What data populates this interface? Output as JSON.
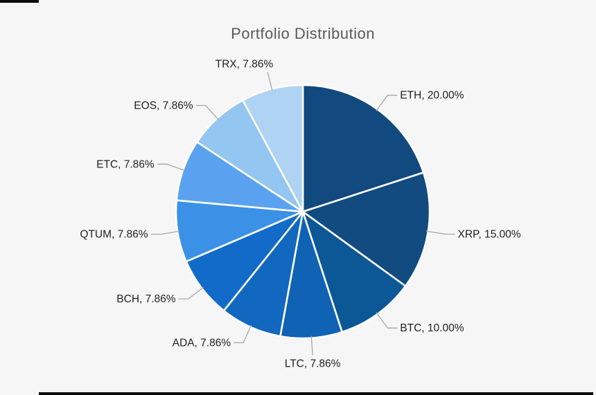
{
  "page": {
    "background": "#F6F6F6"
  },
  "header": {
    "title": "Portfolio Distribution",
    "title_color": "#595959"
  },
  "chart_data": {
    "type": "pie",
    "title": "Portfolio Distribution",
    "legend_position": "none",
    "start_angle_deg": 0,
    "direction": "clockwise",
    "total_percent": 100,
    "label_format": "{label}, {value}%",
    "label_style": {
      "color": "#1F1F1F",
      "leader_line_color": "#A6A6A6"
    },
    "slices": [
      {
        "label": "ETH",
        "value": 20.0,
        "display": "ETH, 20.00%",
        "color": "#12497E"
      },
      {
        "label": "XRP",
        "value": 15.0,
        "display": "XRP, 15.00%",
        "color": "#114B80"
      },
      {
        "label": "BTC",
        "value": 10.0,
        "display": "BTC, 10.00%",
        "color": "#0C5796"
      },
      {
        "label": "LTC",
        "value": 7.86,
        "display": "LTC, 7.86%",
        "color": "#0F62B4"
      },
      {
        "label": "ADA",
        "value": 7.86,
        "display": "ADA, 7.86%",
        "color": "#1267BF"
      },
      {
        "label": "BCH",
        "value": 7.86,
        "display": "BCH, 7.86%",
        "color": "#126BC8"
      },
      {
        "label": "QTUM",
        "value": 7.86,
        "display": "QTUM, 7.86%",
        "color": "#3B91E6"
      },
      {
        "label": "ETC",
        "value": 7.86,
        "display": "ETC, 7.86%",
        "color": "#5AA2EF"
      },
      {
        "label": "EOS",
        "value": 7.86,
        "display": "EOS, 7.86%",
        "color": "#93C6F0"
      },
      {
        "label": "TRX",
        "value": 7.86,
        "display": "TRX, 7.86%",
        "color": "#AED3F3"
      }
    ]
  }
}
